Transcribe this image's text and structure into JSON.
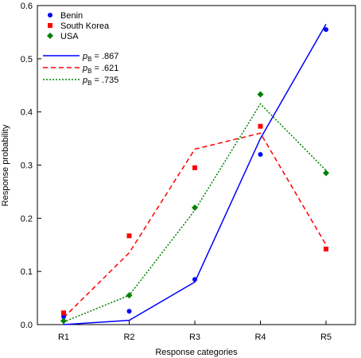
{
  "chart_data": {
    "type": "scatter",
    "xlabel": "Response categories",
    "ylabel": "Response probability",
    "categories": [
      "R1",
      "R2",
      "R3",
      "R4",
      "R5"
    ],
    "ylim": [
      0,
      0.6
    ],
    "yticks": [
      "0.0",
      "0.1",
      "0.2",
      "0.3",
      "0.4",
      "0.5",
      "0.6"
    ],
    "grid": false,
    "legend_position": "top-left",
    "series": [
      {
        "name": "Benin",
        "marker": "circle",
        "color": "#0000ff",
        "values": [
          0.015,
          0.025,
          0.085,
          0.32,
          0.555
        ]
      },
      {
        "name": "South Korea",
        "marker": "square",
        "color": "#ff0000",
        "values": [
          0.022,
          0.167,
          0.295,
          0.373,
          0.142
        ]
      },
      {
        "name": "USA",
        "marker": "diamond",
        "color": "#008000",
        "values": [
          0.007,
          0.055,
          0.22,
          0.433,
          0.285
        ]
      }
    ],
    "lines": [
      {
        "label_prefix": "p",
        "label_sub": "B",
        "label_value": " = .867",
        "color": "#0000ff",
        "style": "solid",
        "values": [
          0.0,
          0.008,
          0.08,
          0.35,
          0.565
        ]
      },
      {
        "label_prefix": "p",
        "label_sub": "B",
        "label_value": " = .621",
        "color": "#ff0000",
        "style": "dashed",
        "values": [
          0.013,
          0.135,
          0.33,
          0.36,
          0.15
        ]
      },
      {
        "label_prefix": "p",
        "label_sub": "B",
        "label_value": " = .735",
        "color": "#008000",
        "style": "dotted",
        "values": [
          0.005,
          0.055,
          0.215,
          0.415,
          0.29
        ]
      }
    ]
  }
}
